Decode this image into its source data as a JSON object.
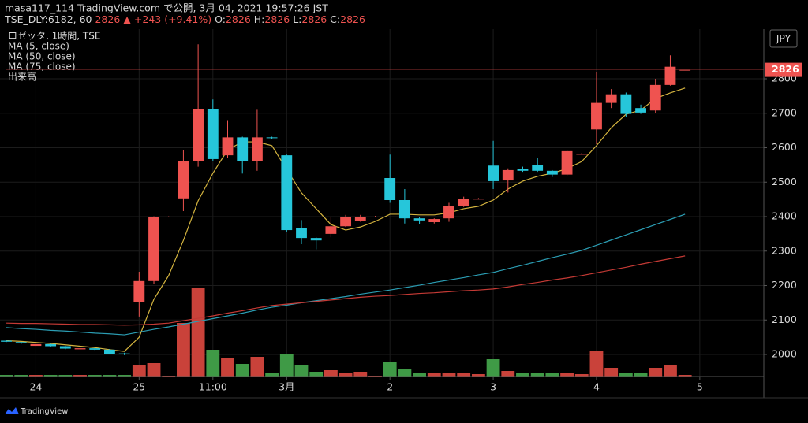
{
  "chart_data": {
    "type": "candlestick",
    "publisher": "masa117_114 TradingView.com で公開, 3月 04, 2021 19:57:26 JST",
    "symbol": "TSE_DLY:6182, 60",
    "change_marker": "▲",
    "change": "+243 (+9.41%)",
    "ohlc_labels": [
      "O:",
      "H:",
      "L:",
      "C:"
    ],
    "instrument": "ロゼッタ, 1時間, TSE",
    "volume_name": "出来高",
    "currency": "JPY",
    "brand": "TradingView",
    "x": [
      0,
      1,
      2,
      3,
      4,
      5,
      6,
      7,
      8,
      9,
      10,
      11,
      12,
      13,
      14,
      15,
      16,
      17,
      18,
      19,
      20,
      21,
      22,
      23,
      24,
      25,
      26,
      27,
      28,
      29,
      30,
      31,
      32,
      33,
      34,
      35,
      36,
      37,
      38,
      39,
      40,
      41,
      42,
      43,
      44,
      45,
      46
    ],
    "open": [
      2040,
      2036,
      2025,
      2030,
      2024,
      2015,
      2018,
      2014,
      2003,
      2153,
      2213,
      2400,
      2453,
      2562,
      2713,
      2578,
      2630,
      2562,
      2630,
      2578,
      2366,
      2338,
      2350,
      2372,
      2388,
      2400,
      2512,
      2448,
      2395,
      2384,
      2395,
      2432,
      2452,
      2548,
      2505,
      2538,
      2550,
      2533,
      2522,
      2582,
      2653,
      2730,
      2755,
      2715,
      2708,
      2782,
      2826
    ],
    "high": [
      2042,
      2037,
      2031,
      2031,
      2025,
      2019,
      2019,
      2016,
      2005,
      2240,
      2401,
      2401,
      2594,
      2900,
      2740,
      2680,
      2632,
      2710,
      2632,
      2580,
      2390,
      2340,
      2400,
      2405,
      2405,
      2402,
      2580,
      2480,
      2398,
      2395,
      2440,
      2458,
      2454,
      2620,
      2540,
      2545,
      2570,
      2535,
      2592,
      2585,
      2820,
      2770,
      2760,
      2725,
      2800,
      2868,
      2826
    ],
    "low": [
      2036,
      2030,
      2024,
      2022,
      2015,
      2014,
      2013,
      2000,
      1998,
      2110,
      2205,
      2399,
      2416,
      2545,
      2560,
      2570,
      2525,
      2533,
      2625,
      2355,
      2320,
      2305,
      2340,
      2370,
      2385,
      2398,
      2440,
      2380,
      2378,
      2380,
      2385,
      2428,
      2450,
      2480,
      2470,
      2530,
      2530,
      2515,
      2518,
      2580,
      2610,
      2715,
      2690,
      2698,
      2700,
      2780,
      2826
    ],
    "close": [
      2037,
      2032,
      2030,
      2024,
      2017,
      2018,
      2014,
      2002,
      2000,
      2213,
      2400,
      2400,
      2562,
      2713,
      2567,
      2630,
      2562,
      2630,
      2628,
      2361,
      2338,
      2331,
      2372,
      2398,
      2400,
      2400,
      2448,
      2395,
      2389,
      2393,
      2432,
      2452,
      2452,
      2503,
      2535,
      2533,
      2533,
      2522,
      2590,
      2582,
      2730,
      2755,
      2698,
      2702,
      2782,
      2835,
      2826
    ],
    "volume": [
      2,
      2,
      2,
      2,
      2,
      2,
      2,
      2,
      2,
      14,
      17,
      1,
      68,
      112,
      34,
      23,
      16,
      25,
      4,
      28,
      15,
      6,
      8,
      5,
      6,
      1,
      19,
      9,
      4,
      4,
      4,
      5,
      3,
      22,
      7,
      4,
      4,
      4,
      5,
      3,
      32,
      11,
      5,
      4,
      11,
      15,
      2
    ],
    "volume_lim": [
      0,
      441
    ],
    "up_color": "#ef5350",
    "down_color": "#26c6da",
    "volume_up_color": "#c9423a",
    "volume_down_color": "#3f9a46",
    "series": [
      {
        "name": "MA (5, close)",
        "color": "#d4b43f",
        "values": [
          2040,
          2038,
          2035,
          2032,
          2028,
          2024,
          2020,
          2014,
          2009,
          2050,
          2160,
          2229,
          2331,
          2446,
          2526,
          2594,
          2617,
          2617,
          2606,
          2537,
          2469,
          2423,
          2377,
          2361,
          2370,
          2386,
          2407,
          2407,
          2405,
          2405,
          2411,
          2423,
          2430,
          2448,
          2480,
          2503,
          2517,
          2526,
          2539,
          2560,
          2606,
          2658,
          2697,
          2709,
          2743,
          2759,
          2773
        ]
      },
      {
        "name": "MA (50, close)",
        "color": "#2b9db3",
        "values": [
          2078,
          2075,
          2073,
          2070,
          2068,
          2065,
          2062,
          2060,
          2057,
          2065,
          2073,
          2080,
          2088,
          2096,
          2104,
          2112,
          2120,
          2129,
          2137,
          2143,
          2150,
          2156,
          2162,
          2168,
          2175,
          2181,
          2187,
          2194,
          2201,
          2209,
          2216,
          2223,
          2231,
          2238,
          2249,
          2259,
          2270,
          2281,
          2291,
          2302,
          2317,
          2332,
          2347,
          2362,
          2377,
          2392,
          2407
        ]
      },
      {
        "name": "MA (75, close)",
        "color": "#c53a35",
        "values": [
          2091,
          2090,
          2090,
          2089,
          2088,
          2087,
          2087,
          2086,
          2085,
          2086,
          2088,
          2091,
          2098,
          2105,
          2112,
          2120,
          2127,
          2135,
          2142,
          2146,
          2150,
          2154,
          2158,
          2162,
          2166,
          2169,
          2171,
          2174,
          2177,
          2179,
          2182,
          2185,
          2187,
          2190,
          2196,
          2203,
          2209,
          2216,
          2222,
          2229,
          2237,
          2245,
          2253,
          2262,
          2270,
          2278,
          2286
        ]
      }
    ],
    "xlim": [
      -0.43,
      51.34
    ],
    "xticks": [
      {
        "value": 2,
        "label": "24"
      },
      {
        "value": 9,
        "label": "25"
      },
      {
        "value": 14,
        "label": "11:00"
      },
      {
        "value": 19,
        "label": "3月"
      },
      {
        "value": 26,
        "label": "2"
      },
      {
        "value": 33,
        "label": "3"
      },
      {
        "value": 40,
        "label": "4"
      },
      {
        "value": 47,
        "label": "5"
      }
    ],
    "ylim": [
      1936,
      2944
    ],
    "yticks": [
      2000,
      2100,
      2200,
      2300,
      2400,
      2500,
      2600,
      2700,
      2800
    ],
    "grid": true
  }
}
